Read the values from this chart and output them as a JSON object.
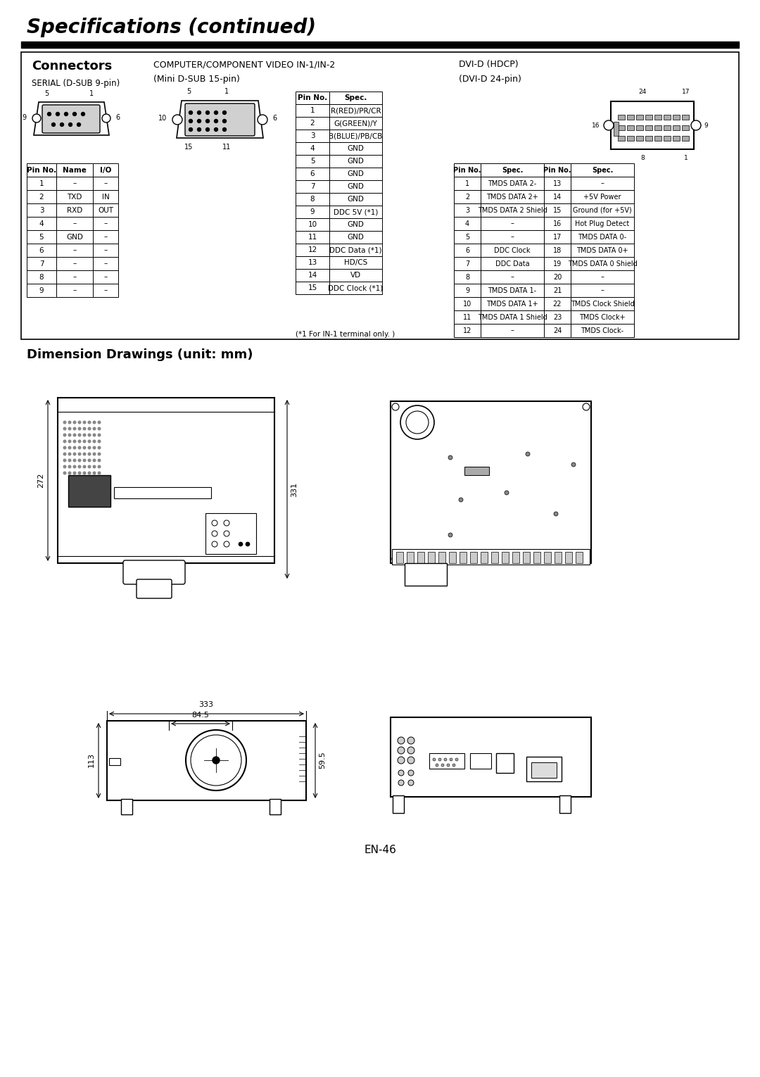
{
  "title": "Specifications (continued)",
  "page_num": "EN-46",
  "bg_color": "#ffffff",
  "section1_title": "Connectors",
  "serial_label": "SERIAL (D-SUB 9-pin)",
  "comp_video_label": "COMPUTER/COMPONENT VIDEO IN-1/IN-2",
  "comp_video_sub": "(Mini D-SUB 15-pin)",
  "dvi_label": "DVI-D (HDCP)",
  "dvi_sub": "(DVI-D 24-pin)",
  "dim_title": "Dimension Drawings (unit: mm)",
  "serial_table": {
    "headers": [
      "Pin No.",
      "Name",
      "I/O"
    ],
    "rows": [
      [
        "1",
        "–",
        "–"
      ],
      [
        "2",
        "TXD",
        "IN"
      ],
      [
        "3",
        "RXD",
        "OUT"
      ],
      [
        "4",
        "–",
        "–"
      ],
      [
        "5",
        "GND",
        "–"
      ],
      [
        "6",
        "–",
        "–"
      ],
      [
        "7",
        "–",
        "–"
      ],
      [
        "8",
        "–",
        "–"
      ],
      [
        "9",
        "–",
        "–"
      ]
    ]
  },
  "comp_table": {
    "headers": [
      "Pin No.",
      "Spec."
    ],
    "rows": [
      [
        "1",
        "R(RED)/PR/CR"
      ],
      [
        "2",
        "G(GREEN)/Y"
      ],
      [
        "3",
        "B(BLUE)/PB/CB"
      ],
      [
        "4",
        "GND"
      ],
      [
        "5",
        "GND"
      ],
      [
        "6",
        "GND"
      ],
      [
        "7",
        "GND"
      ],
      [
        "8",
        "GND"
      ],
      [
        "9",
        "DDC 5V (*1)"
      ],
      [
        "10",
        "GND"
      ],
      [
        "11",
        "GND"
      ],
      [
        "12",
        "DDC Data (*1)"
      ],
      [
        "13",
        "HD/CS"
      ],
      [
        "14",
        "VD"
      ],
      [
        "15",
        "DDC Clock (*1)"
      ]
    ],
    "footnote": "(*1 For IN-1 terminal only. )"
  },
  "dvi_table": {
    "headers": [
      "Pin No.",
      "Spec.",
      "Pin No.",
      "Spec."
    ],
    "rows": [
      [
        "1",
        "TMDS DATA 2-",
        "13",
        "–"
      ],
      [
        "2",
        "TMDS DATA 2+",
        "14",
        "+5V Power"
      ],
      [
        "3",
        "TMDS DATA 2 Shield",
        "15",
        "Ground (for +5V)"
      ],
      [
        "4",
        "–",
        "16",
        "Hot Plug Detect"
      ],
      [
        "5",
        "–",
        "17",
        "TMDS DATA 0-"
      ],
      [
        "6",
        "DDC Clock",
        "18",
        "TMDS DATA 0+"
      ],
      [
        "7",
        "DDC Data",
        "19",
        "TMDS DATA 0 Shield"
      ],
      [
        "8",
        "–",
        "20",
        "–"
      ],
      [
        "9",
        "TMDS DATA 1-",
        "21",
        "–"
      ],
      [
        "10",
        "TMDS DATA 1+",
        "22",
        "TMDS Clock Shield"
      ],
      [
        "11",
        "TMDS DATA 1 Shield",
        "23",
        "TMDS Clock+"
      ],
      [
        "12",
        "–",
        "24",
        "TMDS Clock-"
      ]
    ]
  }
}
